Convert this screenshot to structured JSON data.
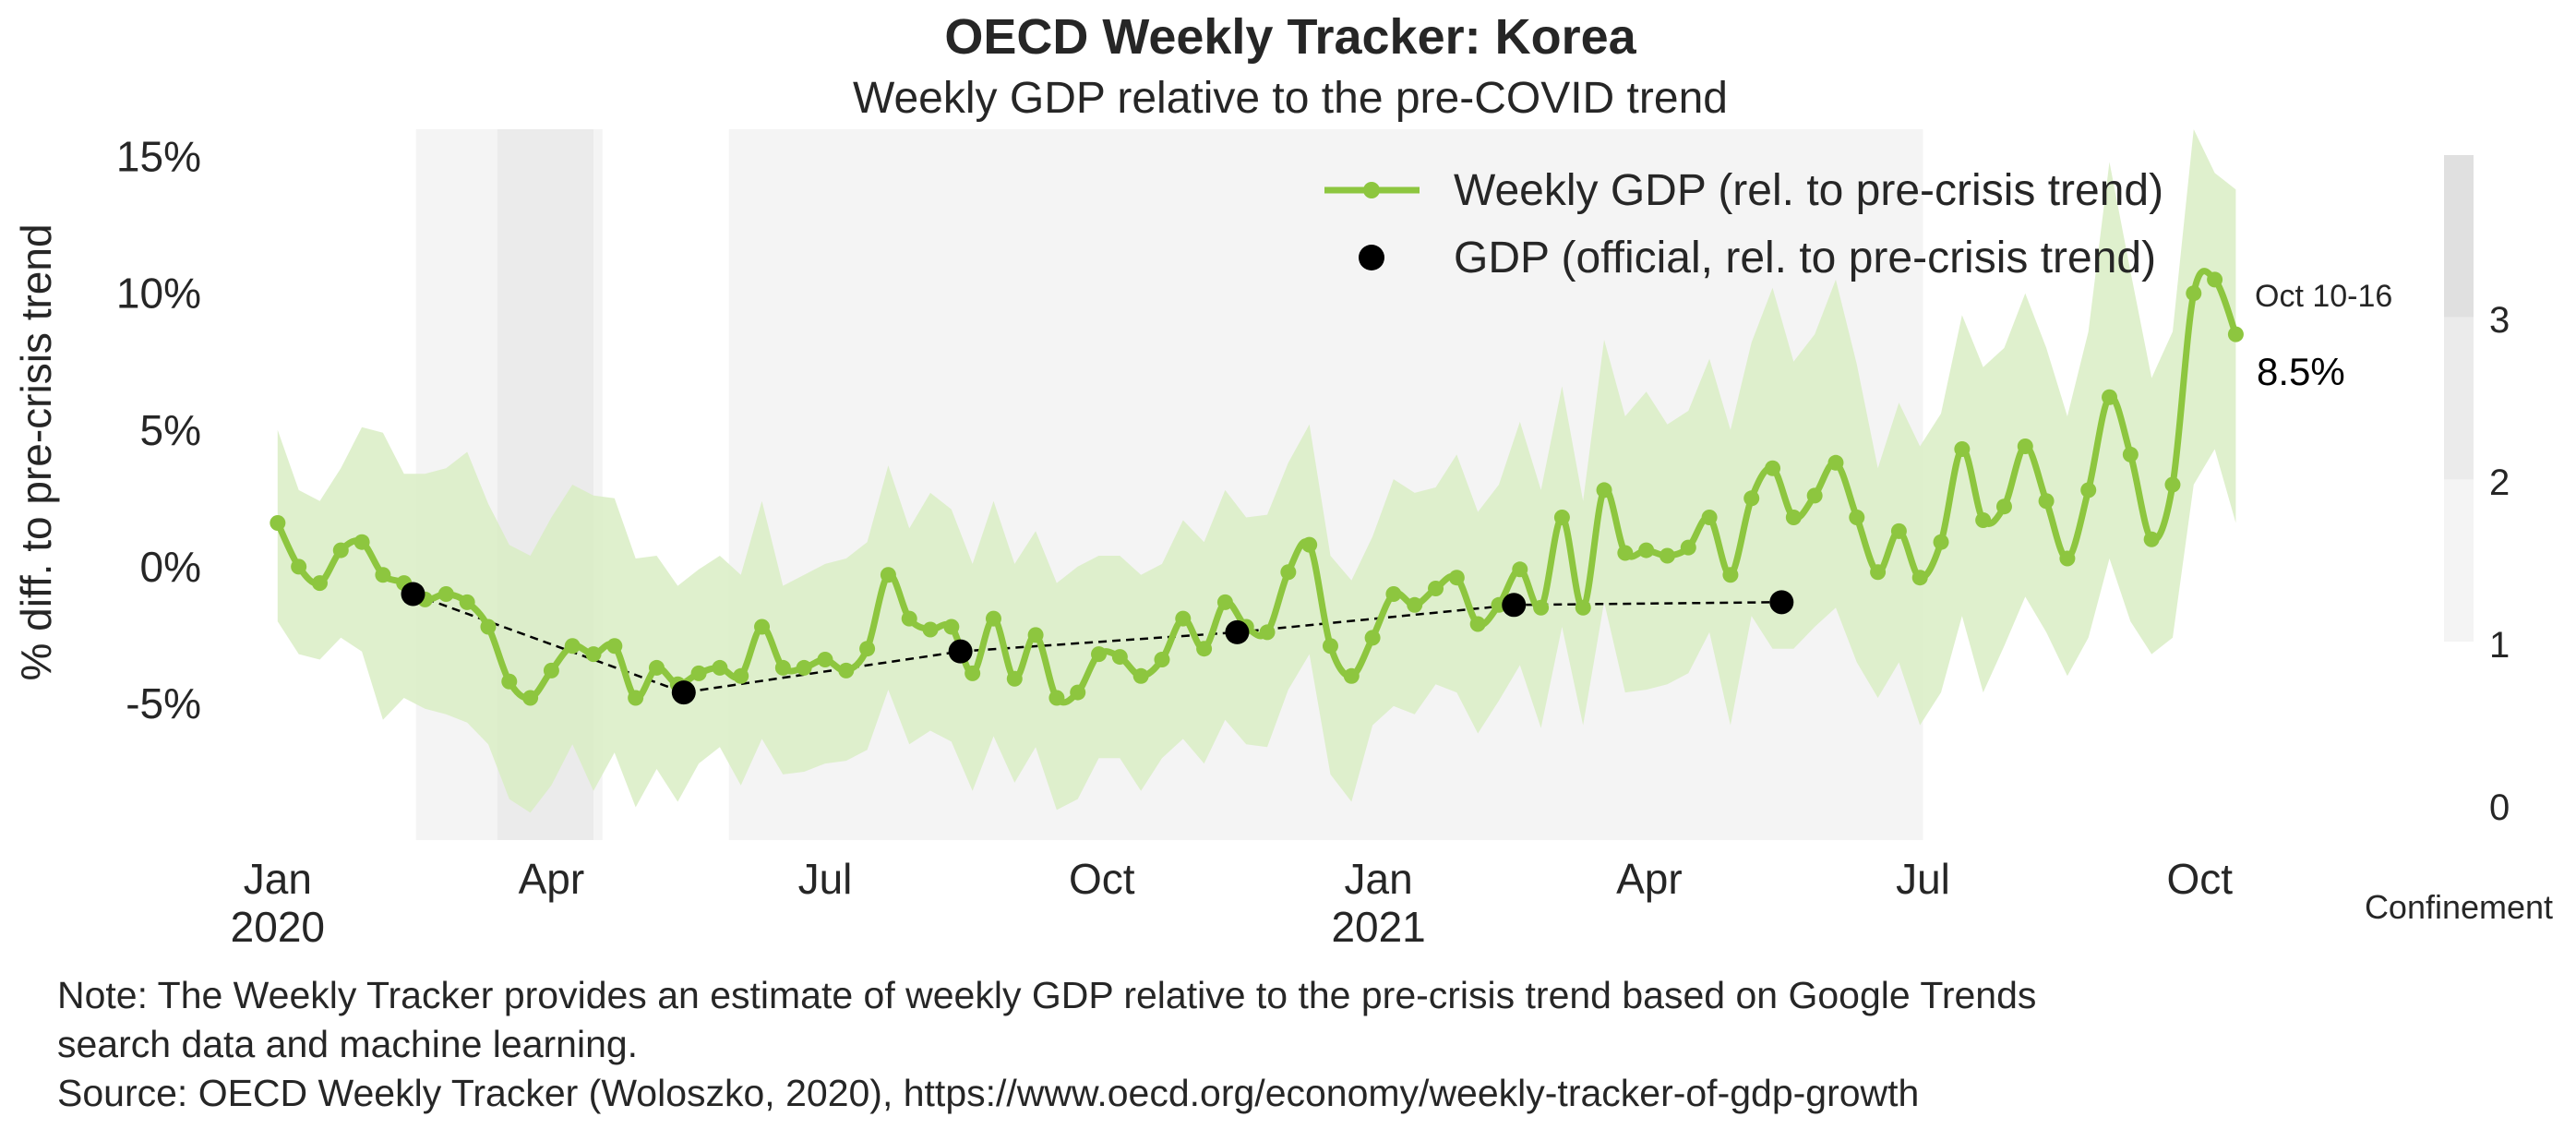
{
  "chart_data": {
    "type": "line",
    "title": "OECD Weekly Tracker: Korea",
    "subtitle": "Weekly GDP relative to the pre-COVID trend",
    "ylabel": "% diff. to pre-crisis trend",
    "xlabel": "",
    "ylim": [
      -10,
      16
    ],
    "yticks": [
      15,
      10,
      5,
      0,
      -5
    ],
    "ytick_labels": [
      "15%",
      "10%",
      "5%",
      "0%",
      "-5%"
    ],
    "xlim": [
      "2019-12-21",
      "2021-10-23"
    ],
    "xticks": [
      {
        "date": "2020-01-01",
        "label": "Jan",
        "year": "2020"
      },
      {
        "date": "2020-04-01",
        "label": "Apr",
        "year": ""
      },
      {
        "date": "2020-07-01",
        "label": "Jul",
        "year": ""
      },
      {
        "date": "2020-10-01",
        "label": "Oct",
        "year": ""
      },
      {
        "date": "2021-01-01",
        "label": "Jan",
        "year": "2021"
      },
      {
        "date": "2021-04-01",
        "label": "Apr",
        "year": ""
      },
      {
        "date": "2021-07-01",
        "label": "Jul",
        "year": ""
      },
      {
        "date": "2021-10-01",
        "label": "Oct",
        "year": ""
      }
    ],
    "grid": false,
    "legend_position": "top-right",
    "series": [
      {
        "name": "Weekly GDP (rel. to pre-crisis trend)",
        "color": "#8dc63f",
        "band_color": "#d9edc4",
        "start_date": "2020-01-01",
        "interval_days": 7,
        "values": [
          1.6,
          0.0,
          -0.6,
          0.6,
          0.9,
          -0.3,
          -0.6,
          -1.2,
          -1.0,
          -1.3,
          -2.2,
          -4.2,
          -4.8,
          -3.8,
          -2.9,
          -3.2,
          -2.9,
          -4.8,
          -3.7,
          -4.3,
          -3.9,
          -3.7,
          -4.0,
          -2.2,
          -3.7,
          -3.7,
          -3.4,
          -3.8,
          -3.0,
          -0.3,
          -1.9,
          -2.3,
          -2.2,
          -3.9,
          -1.9,
          -4.1,
          -2.5,
          -4.8,
          -4.6,
          -3.2,
          -3.3,
          -4.0,
          -3.4,
          -1.9,
          -3.0,
          -1.3,
          -2.2,
          -2.4,
          -0.2,
          0.8,
          -2.9,
          -4.0,
          -2.6,
          -1.0,
          -1.4,
          -0.8,
          -0.4,
          -2.1,
          -1.4,
          -0.1,
          -1.5,
          1.8,
          -1.5,
          2.8,
          0.5,
          0.6,
          0.4,
          0.7,
          1.8,
          -0.3,
          2.5,
          3.6,
          1.8,
          2.6,
          3.8,
          1.8,
          -0.2,
          1.3,
          -0.4,
          0.9,
          4.3,
          1.7,
          2.2,
          4.4,
          2.4,
          0.3,
          2.8,
          6.2,
          4.1,
          1.0,
          3.0,
          10.0,
          10.5,
          8.5
        ],
        "band_low": [
          -2.0,
          -3.2,
          -3.4,
          -2.6,
          -3.1,
          -5.6,
          -4.8,
          -5.2,
          -5.4,
          -5.7,
          -6.5,
          -8.5,
          -9.0,
          -8.0,
          -6.5,
          -8.2,
          -6.8,
          -8.8,
          -7.4,
          -8.6,
          -7.2,
          -6.6,
          -8.0,
          -6.3,
          -7.6,
          -7.5,
          -7.2,
          -7.1,
          -6.7,
          -4.5,
          -6.5,
          -6.0,
          -6.4,
          -8.2,
          -6.2,
          -7.9,
          -6.6,
          -8.9,
          -8.5,
          -7.0,
          -7.0,
          -8.2,
          -7.0,
          -6.3,
          -7.2,
          -5.6,
          -6.5,
          -6.6,
          -4.5,
          -3.2,
          -7.6,
          -8.6,
          -5.8,
          -5.1,
          -5.4,
          -4.3,
          -4.6,
          -6.1,
          -4.9,
          -3.6,
          -5.9,
          -2.2,
          -5.8,
          -1.3,
          -4.6,
          -4.5,
          -4.3,
          -3.9,
          -2.4,
          -5.8,
          -1.8,
          -3.0,
          -3.0,
          -2.2,
          -1.5,
          -3.5,
          -4.8,
          -3.5,
          -5.8,
          -4.6,
          -1.8,
          -4.6,
          -2.9,
          -1.1,
          -2.4,
          -4.0,
          -2.6,
          0.3,
          -2.0,
          -3.2,
          -2.6,
          3.0,
          4.3,
          1.6
        ],
        "band_high": [
          5.0,
          2.8,
          2.4,
          3.6,
          5.1,
          4.9,
          3.4,
          3.4,
          3.6,
          4.2,
          2.3,
          0.8,
          0.4,
          1.8,
          3.0,
          2.6,
          2.5,
          0.3,
          0.4,
          -0.7,
          -0.1,
          0.4,
          -0.3,
          2.4,
          -0.7,
          -0.3,
          0.1,
          0.3,
          0.9,
          3.7,
          1.4,
          2.7,
          2.1,
          0.1,
          2.4,
          0.1,
          1.3,
          -0.6,
          0.0,
          0.4,
          0.4,
          -0.3,
          0.1,
          1.7,
          0.9,
          2.8,
          1.8,
          1.9,
          3.8,
          5.2,
          0.4,
          -0.5,
          1.1,
          3.2,
          2.7,
          2.9,
          4.1,
          2.0,
          3.0,
          5.3,
          2.8,
          6.6,
          2.4,
          8.3,
          5.5,
          6.4,
          5.2,
          5.7,
          7.6,
          5.0,
          8.2,
          10.2,
          7.5,
          8.5,
          10.5,
          7.4,
          3.6,
          6.0,
          4.4,
          5.6,
          9.2,
          7.3,
          8.0,
          10.0,
          8.0,
          5.5,
          8.6,
          14.8,
          10.8,
          6.9,
          8.6,
          16.0,
          14.4,
          13.8
        ]
      },
      {
        "name": "GDP (official, rel. to pre-crisis trend)",
        "color": "#000000",
        "points": [
          {
            "date": "2020-02-15",
            "value": -1.0
          },
          {
            "date": "2020-05-15",
            "value": -4.6
          },
          {
            "date": "2020-08-15",
            "value": -3.1
          },
          {
            "date": "2020-11-15",
            "value": -2.4
          },
          {
            "date": "2021-02-15",
            "value": -1.4
          },
          {
            "date": "2021-05-15",
            "value": -1.3
          }
        ]
      }
    ],
    "confinement": {
      "label": "Confinement",
      "ticks": [
        "3",
        "2",
        "1",
        "0"
      ],
      "scale_colors": [
        "#ffffff",
        "#f4f4f4",
        "#ebebeb",
        "#e0e0e0"
      ],
      "periods": [
        {
          "start": "2020-02-16",
          "end": "2020-03-14",
          "level": 1
        },
        {
          "start": "2020-03-14",
          "end": "2020-04-15",
          "level": 2
        },
        {
          "start": "2020-04-15",
          "end": "2020-04-18",
          "level": 1
        },
        {
          "start": "2020-05-30",
          "end": "2021-07-01",
          "level": 1
        }
      ]
    },
    "annotation": {
      "date_label": "Oct 10-16",
      "value_label": "8.5%"
    }
  },
  "notes": {
    "line1": "Note: The Weekly Tracker provides an estimate of weekly GDP relative to the pre-crisis trend based on Google Trends",
    "line2": "search data and machine learning.",
    "line3": "Source: OECD Weekly Tracker (Woloszko, 2020), https://www.oecd.org/economy/weekly-tracker-of-gdp-growth"
  }
}
